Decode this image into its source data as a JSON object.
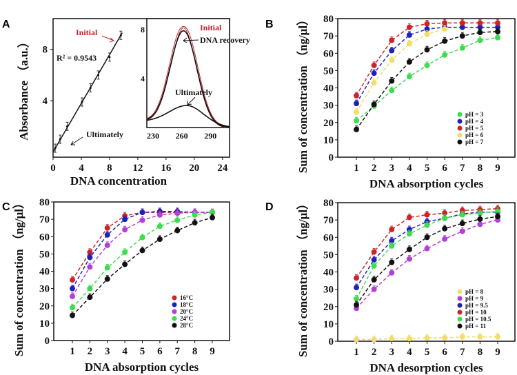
{
  "chart_data": [
    {
      "panel": "A",
      "type": "line",
      "xlabel": "DNA  concentration",
      "ylabel": "Absorbance （a.u.）",
      "xlim": [
        0,
        25
      ],
      "ylim": [
        -0.4,
        10.4
      ],
      "xticks": [
        0,
        4,
        8,
        12,
        16,
        20,
        24
      ],
      "yticks": [
        4,
        8
      ],
      "points": {
        "x": [
          0.3,
          1,
          2,
          4.1,
          5.3,
          6.4,
          8,
          9.6
        ],
        "y": [
          0.3,
          1,
          2,
          3.9,
          5,
          6,
          7.4,
          9.1
        ]
      },
      "annotations": {
        "r2": "R² = 0.9543",
        "initial": "Initial",
        "ultimately": "Ultimately"
      },
      "inset": {
        "type": "line",
        "xlim": [
          223.5,
          310
        ],
        "ylim": [
          0,
          8.9
        ],
        "xticks": [
          230,
          260,
          290
        ],
        "yticks": [
          4,
          8
        ],
        "series": [
          {
            "name": "Initial",
            "peak_x": 262,
            "peak_y": 8.2,
            "color": "#c0262c"
          },
          {
            "name": "DNA recovery",
            "peak_x": 262,
            "peak_y": 7.9,
            "color": "#111111"
          },
          {
            "name": "Ultimately",
            "peak_x": 265,
            "peak_y": 1.8,
            "color": "#111111"
          }
        ]
      },
      "grid": false
    },
    {
      "panel": "B",
      "type": "scatter",
      "xlabel": "DNA  absorption cycles",
      "ylabel": "Sum of concentration （ng/μl）",
      "x": [
        1,
        2,
        3,
        4,
        5,
        6,
        7,
        8,
        9
      ],
      "ylim": [
        0,
        80
      ],
      "yticks": [
        0,
        10,
        20,
        30,
        40,
        50,
        60,
        70,
        80
      ],
      "legend": "bottom-right",
      "grid": false,
      "series": [
        {
          "name": "pH = 3",
          "color": "#3ddc4e",
          "values": [
            21,
            29.5,
            38.5,
            46.5,
            53,
            59,
            63,
            67.5,
            69
          ]
        },
        {
          "name": "pH = 4",
          "color": "#1f22b8",
          "values": [
            31,
            48.5,
            61.5,
            70.5,
            74,
            75,
            75,
            75,
            75
          ]
        },
        {
          "name": "pH = 5",
          "color": "#c9252b",
          "values": [
            35.5,
            53,
            67.5,
            75,
            77,
            77.5,
            77.5,
            77.5,
            77.5
          ]
        },
        {
          "name": "pH = 6",
          "color": "#f2dc6a",
          "values": [
            26,
            43,
            56,
            65.5,
            71,
            74,
            null,
            null,
            null
          ]
        },
        {
          "name": "pH = 7",
          "color": "#111111",
          "values": [
            16,
            30.5,
            44,
            55,
            62,
            67,
            70,
            72,
            72.5
          ]
        }
      ]
    },
    {
      "panel": "C",
      "type": "scatter",
      "xlabel": "DNA  absorption cycles",
      "ylabel": "Sum of concentration （ng/μl）",
      "x": [
        1,
        2,
        3,
        4,
        5,
        6,
        7,
        8,
        9
      ],
      "ylim": [
        0,
        80
      ],
      "yticks": [
        0,
        10,
        20,
        30,
        40,
        50,
        60,
        70,
        80
      ],
      "legend": "bottom-right",
      "grid": false,
      "series": [
        {
          "name": "16°C",
          "color": "#c9252b",
          "values": [
            35,
            51,
            65,
            72,
            74,
            74,
            74,
            74,
            74
          ]
        },
        {
          "name": "18°C",
          "color": "#1f22b8",
          "values": [
            30,
            48,
            61,
            70,
            74,
            74.5,
            74.5,
            74,
            74
          ]
        },
        {
          "name": "20°C",
          "color": "#b23fd6",
          "values": [
            25.5,
            42.5,
            55,
            64,
            69.5,
            72.5,
            73.5,
            74,
            74
          ]
        },
        {
          "name": "24°C",
          "color": "#3ddc4e",
          "values": [
            19,
            30,
            42,
            51,
            59.5,
            66,
            69.5,
            72.5,
            74
          ]
        },
        {
          "name": "28°C",
          "color": "#111111",
          "values": [
            14.5,
            25,
            35.5,
            44,
            52,
            58.5,
            63.5,
            68,
            71
          ]
        }
      ]
    },
    {
      "panel": "D",
      "type": "scatter",
      "xlabel": "DNA desorption cycles",
      "ylabel": "Sum of concentration （ng/μl）",
      "x": [
        1,
        2,
        3,
        4,
        5,
        6,
        7,
        8,
        9
      ],
      "ylim": [
        0,
        80
      ],
      "yticks": [
        0,
        10,
        20,
        30,
        40,
        50,
        60,
        70,
        80
      ],
      "legend": "bottom-right",
      "grid": false,
      "series": [
        {
          "name": "pH = 8",
          "color": "#f2dc6a",
          "values": [
            1,
            1,
            1.5,
            1.5,
            2,
            2,
            2.5,
            2.5,
            2.5
          ]
        },
        {
          "name": "pH = 9",
          "color": "#b23fd6",
          "values": [
            19,
            30,
            39.5,
            47.5,
            53.5,
            59,
            63.5,
            67.5,
            70
          ]
        },
        {
          "name": "pH = 9.5",
          "color": "#1f22b8",
          "values": [
            31,
            47,
            58,
            64.5,
            69,
            71,
            73.5,
            74.5,
            74.5
          ]
        },
        {
          "name": "pH = 10",
          "color": "#c9252b",
          "values": [
            36.5,
            51.5,
            64.5,
            71.5,
            73,
            74,
            75.5,
            76,
            76.5
          ]
        },
        {
          "name": "pH = 10.5",
          "color": "#3ddc4e",
          "values": [
            24.5,
            43.5,
            55,
            62,
            67,
            71,
            73,
            74,
            75
          ]
        },
        {
          "name": "pH = 11",
          "color": "#111111",
          "values": [
            21,
            35.5,
            45.5,
            53,
            60,
            65,
            68,
            70.5,
            72
          ]
        }
      ]
    }
  ]
}
